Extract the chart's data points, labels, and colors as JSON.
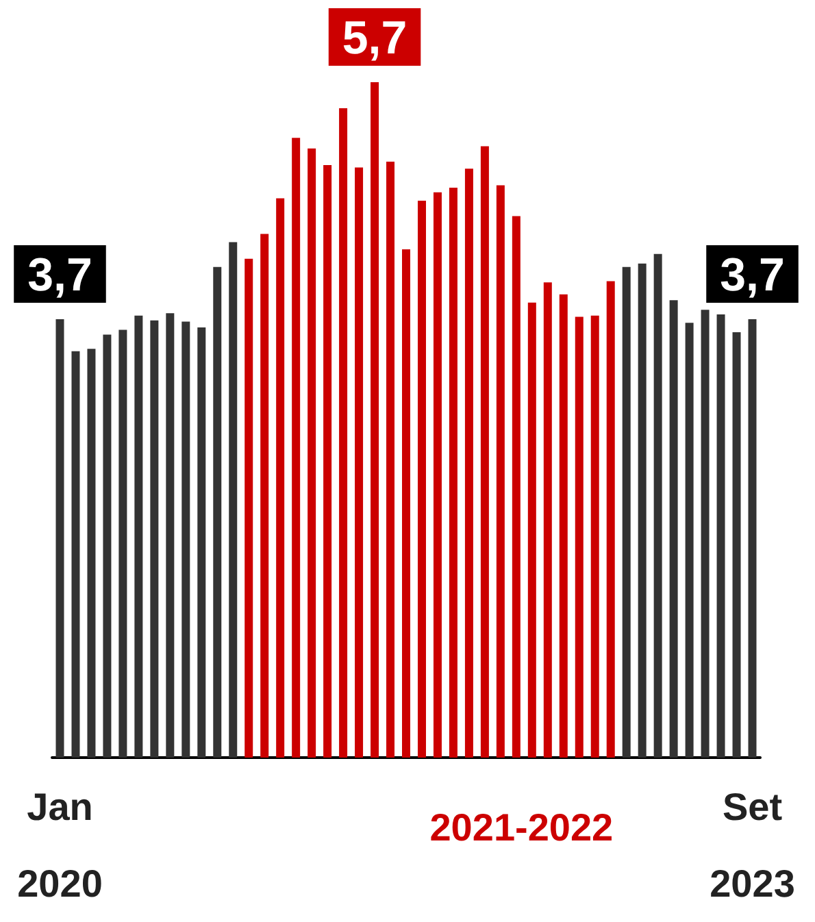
{
  "chart_data": {
    "type": "bar",
    "categories": [
      "Jan 2020",
      null,
      null,
      null,
      null,
      null,
      null,
      null,
      null,
      null,
      null,
      null,
      null,
      null,
      null,
      null,
      null,
      null,
      null,
      null,
      null,
      null,
      null,
      null,
      null,
      null,
      null,
      null,
      null,
      null,
      null,
      null,
      null,
      null,
      null,
      null,
      null,
      null,
      null,
      null,
      null,
      null,
      null,
      null,
      "Set 2023"
    ],
    "values": [
      3.7,
      3.43,
      3.45,
      3.57,
      3.61,
      3.73,
      3.69,
      3.75,
      3.68,
      3.63,
      4.14,
      4.35,
      4.21,
      4.42,
      4.72,
      5.23,
      5.14,
      5.0,
      5.48,
      4.98,
      5.7,
      5.03,
      4.29,
      4.7,
      4.77,
      4.81,
      4.97,
      5.16,
      4.83,
      4.57,
      3.84,
      4.01,
      3.91,
      3.72,
      3.73,
      4.02,
      4.14,
      4.17,
      4.25,
      3.86,
      3.67,
      3.78,
      3.74,
      3.59,
      3.7
    ],
    "colors": [
      "#333333",
      "#333333",
      "#333333",
      "#333333",
      "#333333",
      "#333333",
      "#333333",
      "#333333",
      "#333333",
      "#333333",
      "#333333",
      "#333333",
      "#cc0000",
      "#cc0000",
      "#cc0000",
      "#cc0000",
      "#cc0000",
      "#cc0000",
      "#cc0000",
      "#cc0000",
      "#cc0000",
      "#cc0000",
      "#cc0000",
      "#cc0000",
      "#cc0000",
      "#cc0000",
      "#cc0000",
      "#cc0000",
      "#cc0000",
      "#cc0000",
      "#cc0000",
      "#cc0000",
      "#cc0000",
      "#cc0000",
      "#cc0000",
      "#cc0000",
      "#333333",
      "#333333",
      "#333333",
      "#333333",
      "#333333",
      "#333333",
      "#333333",
      "#333333",
      "#333333"
    ],
    "value_labels": [
      "3,7",
      null,
      null,
      null,
      null,
      null,
      null,
      null,
      null,
      null,
      null,
      null,
      null,
      null,
      null,
      null,
      null,
      null,
      null,
      null,
      "5,7",
      null,
      null,
      null,
      null,
      null,
      null,
      null,
      null,
      null,
      null,
      null,
      null,
      null,
      null,
      null,
      null,
      null,
      null,
      null,
      null,
      null,
      null,
      null,
      "3,7"
    ],
    "annotations": [
      "2021-2022"
    ]
  }
}
